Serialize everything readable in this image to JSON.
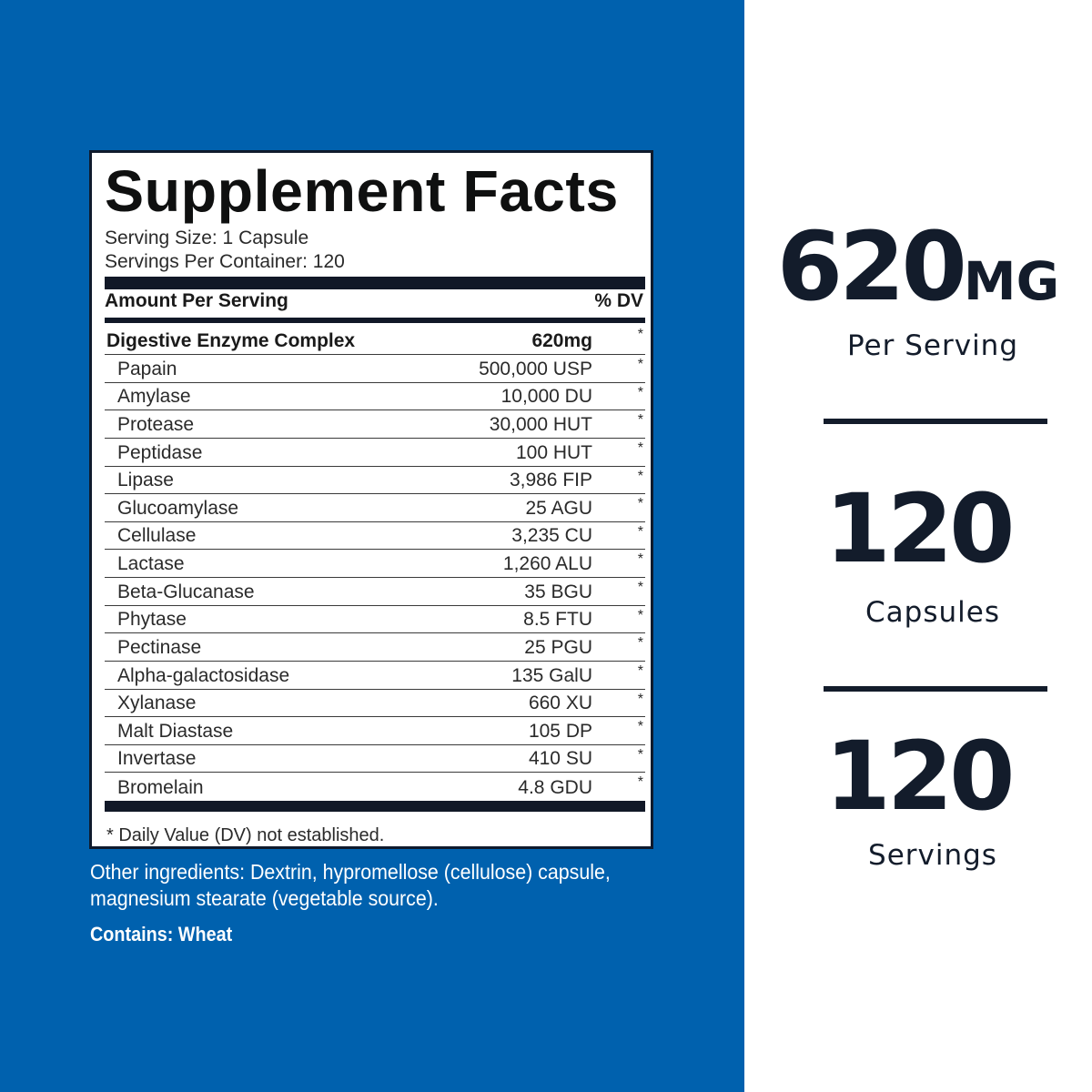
{
  "facts": {
    "title": "Supplement Facts",
    "serving_size": "Serving Size: 1 Capsule",
    "servings_per_container": "Servings Per Container: 120",
    "header_left": "Amount Per Serving",
    "header_right": "% DV",
    "main": {
      "name": "Digestive Enzyme Complex",
      "amount": "620mg",
      "dv": "*"
    },
    "ingredients": [
      {
        "name": "Papain",
        "amount": "500,000 USP",
        "dv": "*"
      },
      {
        "name": "Amylase",
        "amount": "10,000 DU",
        "dv": "*"
      },
      {
        "name": "Protease",
        "amount": "30,000 HUT",
        "dv": "*"
      },
      {
        "name": "Peptidase",
        "amount": "100 HUT",
        "dv": "*"
      },
      {
        "name": "Lipase",
        "amount": "3,986 FIP",
        "dv": "*"
      },
      {
        "name": "Glucoamylase",
        "amount": "25 AGU",
        "dv": "*"
      },
      {
        "name": "Cellulase",
        "amount": "3,235 CU",
        "dv": "*"
      },
      {
        "name": "Lactase",
        "amount": "1,260 ALU",
        "dv": "*"
      },
      {
        "name": "Beta-Glucanase",
        "amount": "35 BGU",
        "dv": "*"
      },
      {
        "name": "Phytase",
        "amount": "8.5 FTU",
        "dv": "*"
      },
      {
        "name": "Pectinase",
        "amount": "25 PGU",
        "dv": "*"
      },
      {
        "name": "Alpha-galactosidase",
        "amount": "135  GalU",
        "dv": "*"
      },
      {
        "name": "Xylanase",
        "amount": "660 XU",
        "dv": "*"
      },
      {
        "name": "Malt Diastase",
        "amount": "105 DP",
        "dv": "*"
      },
      {
        "name": "Invertase",
        "amount": "410 SU",
        "dv": "*"
      },
      {
        "name": "Bromelain",
        "amount": "4.8 GDU",
        "dv": "*"
      }
    ],
    "footnote": "* Daily Value (DV) not established."
  },
  "other_ingredients": "Other ingredients: Dextrin, hypromellose (cellulose) capsule, magnesium stearate (vegetable source).",
  "contains": "Contains: Wheat",
  "stats": [
    {
      "number": "620",
      "unit": "MG",
      "label": "Per Serving"
    },
    {
      "number": "120",
      "unit": "",
      "label": "Capsules"
    },
    {
      "number": "120",
      "unit": "",
      "label": "Servings"
    }
  ],
  "colors": {
    "brand_blue": "#0061ae",
    "dark_navy": "#131c2b"
  }
}
